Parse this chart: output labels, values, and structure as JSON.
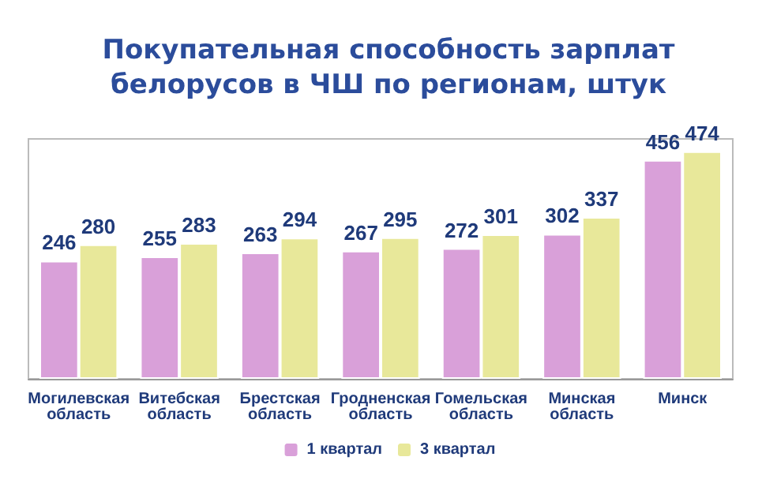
{
  "chart_data": {
    "type": "bar",
    "title": "Покупательная способность зарплат\nбелорусов в ЧШ по регионам, штук",
    "categories": [
      "Могилевская область",
      "Витебская область",
      "Брестская область",
      "Гродненская область",
      "Гомельская область",
      "Минская область",
      "Минск"
    ],
    "series": [
      {
        "name": "1 квартал",
        "color": "#d9a0d9",
        "values": [
          246,
          255,
          263,
          267,
          272,
          302,
          456
        ]
      },
      {
        "name": "3 квартал",
        "color": "#e8e89a",
        "values": [
          280,
          283,
          294,
          295,
          301,
          337,
          474
        ]
      }
    ],
    "data_labels": true,
    "legend": "bottom"
  }
}
